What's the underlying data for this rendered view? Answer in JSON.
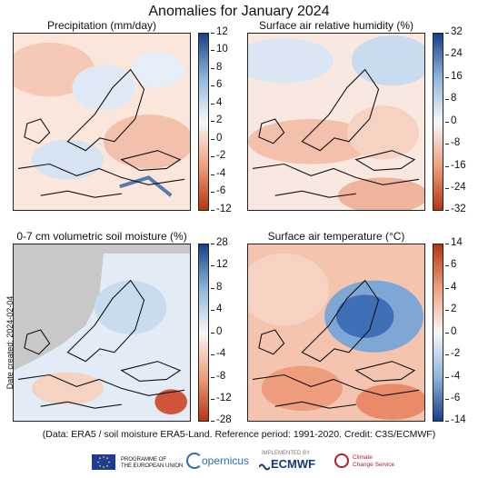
{
  "title": "Anomalies for January 2024",
  "panels": [
    {
      "title": "Precipitation (mm/day)",
      "ticks": [
        "12",
        "10",
        "8",
        "6",
        "4",
        "2",
        "0",
        "-2",
        "-4",
        "-6",
        "-12"
      ],
      "colors": {
        "top": "#163f8a",
        "mid": "#f7f7f7",
        "bottom": "#b8350d"
      }
    },
    {
      "title": "Surface air relative humidity (%)",
      "ticks": [
        "32",
        "24",
        "16",
        "8",
        "0",
        "-8",
        "-16",
        "-24",
        "-32"
      ],
      "colors": {
        "top": "#163f8a",
        "mid": "#f7f7f7",
        "bottom": "#b8350d"
      }
    },
    {
      "title": "0-7 cm volumetric soil moisture (%)",
      "ticks": [
        "28",
        "12",
        "8",
        "4",
        "0",
        "-4",
        "-8",
        "-12",
        "-28"
      ],
      "colors": {
        "top": "#163f8a",
        "mid": "#f7f7f7",
        "bottom": "#b8350d"
      }
    },
    {
      "title": "Surface air temperature (°C)",
      "ticks": [
        "14",
        "6",
        "4",
        "2",
        "0",
        "-2",
        "-4",
        "-6",
        "-14"
      ],
      "colors": {
        "top": "#b8350d",
        "mid": "#f7f7f7",
        "bottom": "#163f8a"
      }
    }
  ],
  "date_created": "Date created: 2024-02-04",
  "credits": "(Data: ERA5 / soil moisture ERA5-Land.  Reference period: 1991-2020.  Credit: C3S/ECMWF)",
  "logos": {
    "eu": "PROGRAMME OF\nTHE EUROPEAN UNION",
    "copernicus": "opernicus",
    "implemented": "IMPLEMENTED BY",
    "ecmwf": "ECMWF",
    "c3s": "Climate\nChange Service"
  }
}
